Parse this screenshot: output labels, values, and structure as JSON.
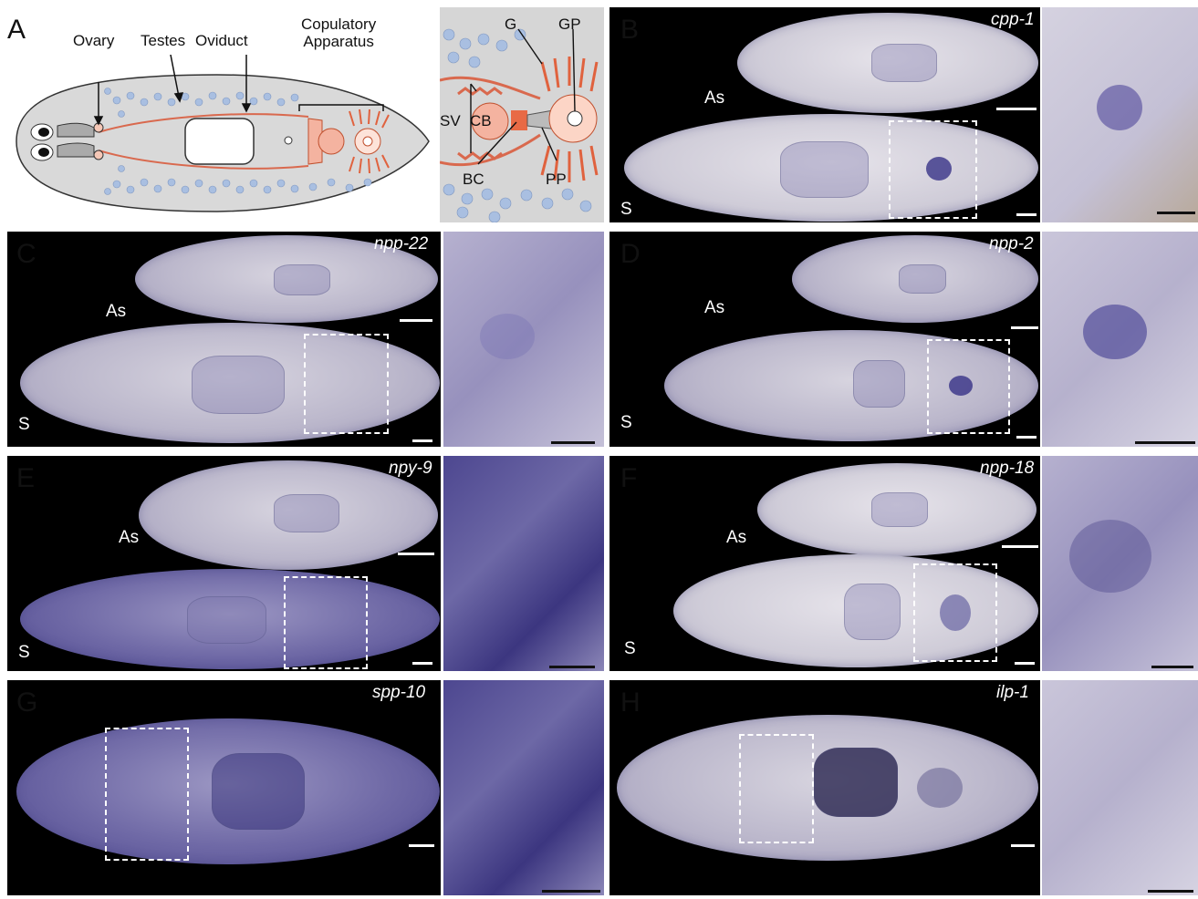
{
  "panelA": {
    "letter": "A",
    "labels": {
      "ovary": "Ovary",
      "testes": "Testes",
      "oviduct": "Oviduct",
      "copulatory": "Copulatory\nApparatus"
    },
    "inset_labels": {
      "g": "G",
      "gp": "GP",
      "sv": "SV",
      "cb": "CB",
      "bc": "BC",
      "pp": "PP"
    }
  },
  "panels": {
    "B": {
      "letter": "B",
      "gene": "cpp-1",
      "as": "As",
      "s": "S"
    },
    "C": {
      "letter": "C",
      "gene": "npp-22",
      "as": "As",
      "s": "S"
    },
    "D": {
      "letter": "D",
      "gene": "npp-2",
      "as": "As",
      "s": "S"
    },
    "E": {
      "letter": "E",
      "gene": "npy-9",
      "as": "As",
      "s": "S"
    },
    "F": {
      "letter": "F",
      "gene": "npp-18",
      "as": "As",
      "s": "S"
    },
    "G": {
      "letter": "G",
      "gene": "spp-10"
    },
    "H": {
      "letter": "H",
      "gene": "ilp-1"
    }
  },
  "colors": {
    "stain": "#3a3a8a",
    "tissue": "#c9c6cf",
    "schematic_body": "#d8d8d8",
    "reproductive": "#f0a08c",
    "testes_dots": "#a8bfe0"
  }
}
